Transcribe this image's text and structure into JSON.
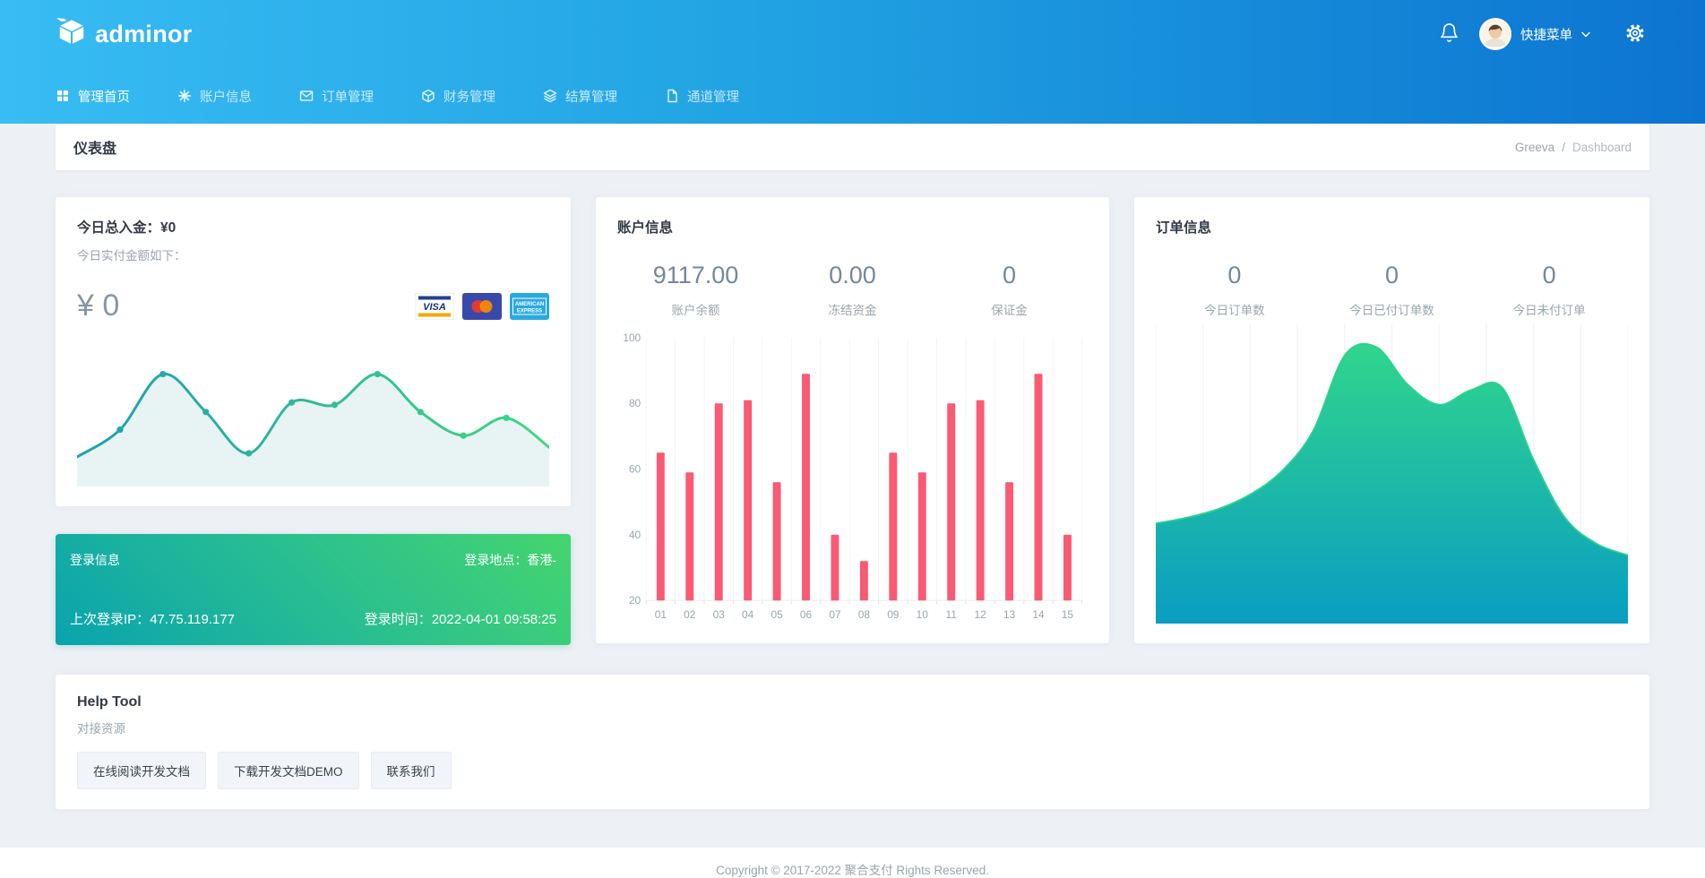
{
  "header": {
    "brand": "adminor",
    "nav": [
      {
        "name": "home",
        "label": "管理首页",
        "icon": "grid-icon",
        "active": true
      },
      {
        "name": "account",
        "label": "账户信息",
        "icon": "asterisk-icon",
        "active": false
      },
      {
        "name": "orders",
        "label": "订单管理",
        "icon": "mail-icon",
        "active": false
      },
      {
        "name": "finance",
        "label": "财务管理",
        "icon": "box-icon",
        "active": false
      },
      {
        "name": "settlement",
        "label": "结算管理",
        "icon": "layers-icon",
        "active": false
      },
      {
        "name": "channel",
        "label": "通道管理",
        "icon": "file-icon",
        "active": false
      }
    ],
    "user_menu_label": "快捷菜单"
  },
  "page_title": "仪表盘",
  "breadcrumb": {
    "parent": "Greeva",
    "separator": "/",
    "current": "Dashboard"
  },
  "cards": {
    "deposit": {
      "title": "今日总入金：¥0",
      "subtitle": "今日实付金额如下：",
      "amount": "¥ 0",
      "payment_methods": [
        "VISA",
        "MasterCard",
        "American Express"
      ]
    },
    "account": {
      "title": "账户信息",
      "stats": [
        {
          "value": "9117.00",
          "label": "账户余额"
        },
        {
          "value": "0.00",
          "label": "冻结资金"
        },
        {
          "value": "0",
          "label": "保证金"
        }
      ]
    },
    "orders": {
      "title": "订单信息",
      "stats": [
        {
          "value": "0",
          "label": "今日订单数"
        },
        {
          "value": "0",
          "label": "今日已付订单数"
        },
        {
          "value": "0",
          "label": "今日未付订单"
        }
      ]
    },
    "login": {
      "title": "登录信息",
      "location_label": "登录地点：",
      "location": "香港-",
      "ip_label": "上次登录IP：",
      "ip": "47.75.119.177",
      "time_label": "登录时间：",
      "time": "2022-04-01 09:58:25"
    },
    "help": {
      "title": "Help Tool",
      "subtitle": "对接资源",
      "buttons": [
        "在线阅读开发文档",
        "下载开发文档DEMO",
        "联系我们"
      ]
    }
  },
  "footer": {
    "copyright": "Copyright © 2017-2022 聚合支付 Rights Reserved."
  },
  "colors": {
    "header_gradient": [
      "#38bcf3",
      "#0c74d0"
    ],
    "login_gradient": [
      "#09a3ae",
      "#45d56e"
    ],
    "bar": "#fa5a73",
    "line_gradient": [
      "#1f9fae",
      "#41d783"
    ],
    "line_fill": "#e8f3f4",
    "area_gradient": [
      "#2fd68c",
      "#0a9dc2"
    ],
    "axis_text": "#98a6ad"
  },
  "chart_data": [
    {
      "id": "deposit-trend",
      "type": "line",
      "title": "今日实付金额走势",
      "values": [
        22,
        45,
        92,
        60,
        25,
        68,
        66,
        92,
        60,
        40,
        55,
        30
      ],
      "ylim": [
        0,
        100
      ],
      "axes_hidden": true,
      "markers": true,
      "legend": "none"
    },
    {
      "id": "account-bars",
      "type": "bar",
      "title": "账户信息柱状图",
      "categories": [
        "01",
        "02",
        "03",
        "04",
        "05",
        "06",
        "07",
        "08",
        "09",
        "10",
        "11",
        "12",
        "13",
        "14",
        "15"
      ],
      "values": [
        65,
        59,
        80,
        81,
        56,
        89,
        40,
        32,
        65,
        59,
        80,
        81,
        56,
        89,
        40
      ],
      "ylim": [
        20,
        100
      ],
      "yticks": [
        20,
        40,
        60,
        80,
        100
      ],
      "grid": "vertical",
      "legend": "none"
    },
    {
      "id": "orders-area",
      "type": "area",
      "title": "订单信息面积图",
      "values": [
        34,
        36,
        39,
        44,
        52,
        66,
        92,
        95,
        82,
        75,
        80,
        81,
        56,
        36,
        27,
        23
      ],
      "ylim": [
        0,
        100
      ],
      "grid": "vertical",
      "axes_hidden": true,
      "legend": "none"
    }
  ]
}
